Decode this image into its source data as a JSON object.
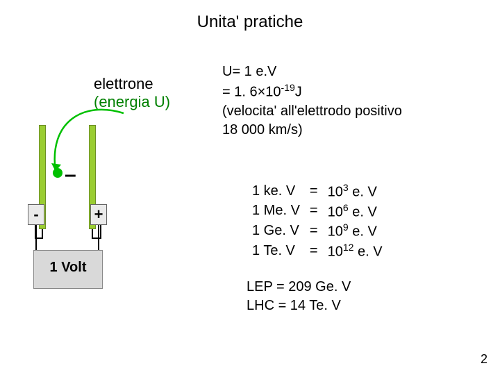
{
  "title": "Unita' pratiche",
  "electron": {
    "label": "elettrone",
    "energy_label": "(energia U)"
  },
  "u_definition": {
    "line1": "U= 1 e.V",
    "line2_prefix": "= 1. 6×10",
    "line2_exp": "-19",
    "line2_suffix": "J",
    "line3": "(velocita' all'elettrodo positivo",
    "line4": "18 000 km/s)"
  },
  "units": [
    {
      "lhs": "1 ke. V",
      "eq": "=",
      "coef": "10",
      "exp": "3",
      "rhs": " e. V"
    },
    {
      "lhs": "1 Me. V",
      "eq": "=",
      "coef": "10",
      "exp": "6",
      "rhs": " e. V"
    },
    {
      "lhs": "1 Ge. V",
      "eq": "=",
      "coef": "10",
      "exp": "9",
      "rhs": " e. V"
    },
    {
      "lhs": "1 Te. V",
      "eq": "=",
      "coef": "10",
      "exp": "12",
      "rhs": " e. V"
    }
  ],
  "accelerators": {
    "line1": "LEP  =  209 Ge. V",
    "line2": "LHC  =  14 Te. V"
  },
  "battery": {
    "minus": "-",
    "plus": "+",
    "label": "1 Volt"
  },
  "minus_near_electron": "–",
  "page_number": "2",
  "colors": {
    "plate_fill": "#9acd32",
    "plate_border": "#6b8e23",
    "electron_fill": "#00c000",
    "arc_stroke": "#00c000",
    "battery_fill": "#d9d9d9",
    "energy_label_color": "#008000"
  }
}
